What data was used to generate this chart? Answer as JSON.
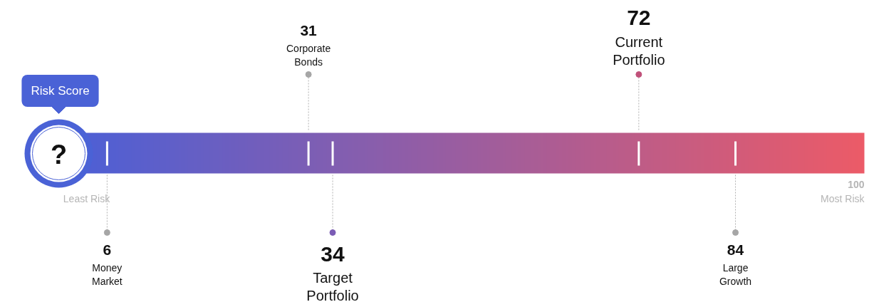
{
  "chart_data": {
    "type": "other",
    "categories": [
      "Money Market",
      "Corporate Bonds",
      "Target Portfolio",
      "Current Portfolio",
      "Large Growth"
    ],
    "values": [
      6,
      31,
      34,
      72,
      84
    ],
    "colors": [
      "#a6a6a6",
      "#a6a6a6",
      "#7b5cb5",
      "#c0517a",
      "#a6a6a6"
    ],
    "data_labels": true,
    "annotations": [
      "Risk Score",
      "?",
      "Least Risk",
      "Most Risk",
      "100"
    ]
  }
}
